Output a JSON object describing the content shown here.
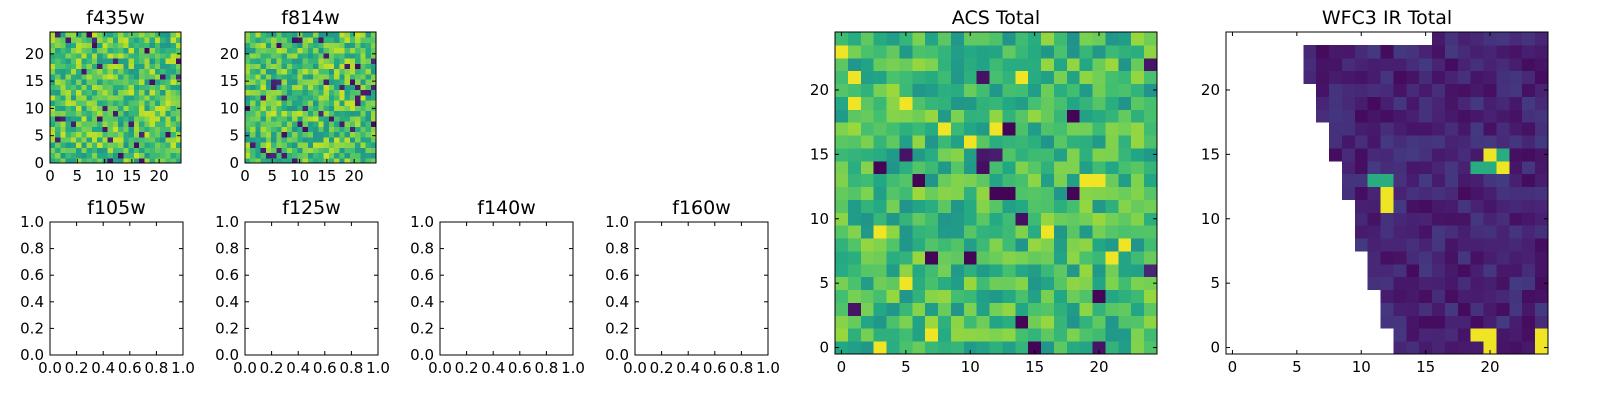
{
  "colormap": "viridis",
  "colors": {
    "frame": "#000000",
    "background": "#ffffff",
    "missing": "#ffffff"
  },
  "chart_data": [
    {
      "type": "heatmap",
      "title": "f435w",
      "grid_size": 25,
      "xlim": [
        0,
        24
      ],
      "ylim": [
        0,
        24
      ],
      "xticks": [
        0,
        5,
        10,
        15,
        20
      ],
      "yticks": [
        0,
        5,
        10,
        15,
        20
      ],
      "seed": 11,
      "value_mean": 0.72,
      "value_spread": 0.2,
      "low_outlier_rate": 0.04
    },
    {
      "type": "heatmap",
      "title": "f814w",
      "grid_size": 25,
      "xlim": [
        0,
        24
      ],
      "ylim": [
        0,
        24
      ],
      "xticks": [
        0,
        5,
        10,
        15,
        20
      ],
      "yticks": [
        0,
        5,
        10,
        15,
        20
      ],
      "seed": 23,
      "value_mean": 0.72,
      "value_spread": 0.2,
      "low_outlier_rate": 0.05
    },
    {
      "type": "empty",
      "title": "f105w",
      "xlim": [
        0,
        1
      ],
      "ylim": [
        0,
        1
      ],
      "xticks": [
        "0.0",
        "0.2",
        "0.4",
        "0.6",
        "0.8",
        "1.0"
      ],
      "yticks": [
        "0.0",
        "0.2",
        "0.4",
        "0.6",
        "0.8",
        "1.0"
      ]
    },
    {
      "type": "empty",
      "title": "f125w",
      "xlim": [
        0,
        1
      ],
      "ylim": [
        0,
        1
      ],
      "xticks": [
        "0.0",
        "0.2",
        "0.4",
        "0.6",
        "0.8",
        "1.0"
      ],
      "yticks": [
        "0.0",
        "0.2",
        "0.4",
        "0.6",
        "0.8",
        "1.0"
      ]
    },
    {
      "type": "empty",
      "title": "f140w",
      "xlim": [
        0,
        1
      ],
      "ylim": [
        0,
        1
      ],
      "xticks": [
        "0.0",
        "0.2",
        "0.4",
        "0.6",
        "0.8",
        "1.0"
      ],
      "yticks": [
        "0.0",
        "0.2",
        "0.4",
        "0.6",
        "0.8",
        "1.0"
      ]
    },
    {
      "type": "empty",
      "title": "f160w",
      "xlim": [
        0,
        1
      ],
      "ylim": [
        0,
        1
      ],
      "xticks": [
        "0.0",
        "0.2",
        "0.4",
        "0.6",
        "0.8",
        "1.0"
      ],
      "yticks": [
        "0.0",
        "0.2",
        "0.4",
        "0.6",
        "0.8",
        "1.0"
      ]
    },
    {
      "type": "heatmap",
      "title": "ACS Total",
      "grid_size": 25,
      "xlim": [
        -0.5,
        24.5
      ],
      "ylim": [
        -0.5,
        24.5
      ],
      "xticks": [
        0,
        5,
        10,
        15,
        20
      ],
      "yticks": [
        0,
        5,
        10,
        15,
        20
      ],
      "seed": 37,
      "value_mean": 0.68,
      "value_spread": 0.17,
      "low_outlier_rate": 0.02,
      "bright_cells": [
        [
          0,
          23
        ],
        [
          1,
          21
        ],
        [
          1,
          19
        ],
        [
          5,
          19
        ],
        [
          8,
          17
        ],
        [
          10,
          16
        ],
        [
          19,
          13
        ],
        [
          20,
          13
        ],
        [
          3,
          9
        ],
        [
          16,
          9
        ],
        [
          5,
          5
        ],
        [
          21,
          7
        ],
        [
          22,
          8
        ],
        [
          7,
          1
        ],
        [
          3,
          0
        ],
        [
          12,
          17
        ],
        [
          14,
          21
        ]
      ],
      "dark_cells": [
        [
          13,
          17
        ],
        [
          18,
          18
        ],
        [
          3,
          14
        ],
        [
          6,
          13
        ],
        [
          12,
          12
        ],
        [
          13,
          12
        ],
        [
          18,
          12
        ],
        [
          20,
          4
        ],
        [
          15,
          0
        ],
        [
          14,
          2
        ],
        [
          10,
          7
        ],
        [
          7,
          7
        ]
      ]
    },
    {
      "type": "heatmap",
      "title": "WFC3 IR Total",
      "grid_size": 25,
      "xlim": [
        -0.5,
        24.5
      ],
      "ylim": [
        -0.5,
        24.5
      ],
      "xticks": [
        0,
        5,
        10,
        15,
        20
      ],
      "yticks": [
        0,
        5,
        10,
        15,
        20
      ],
      "seed": 51,
      "value_mean": 0.1,
      "value_spread": 0.07,
      "low_outlier_rate": 0.05,
      "missing_region": "upper-left triangle",
      "coverage_left_edge": [
        [
          0,
          12.5
        ],
        [
          24,
          5
        ]
      ],
      "bright_cells": [
        [
          20,
          1
        ],
        [
          20,
          0
        ],
        [
          19,
          1
        ],
        [
          24,
          1
        ],
        [
          24,
          0
        ],
        [
          12,
          12
        ],
        [
          12,
          11
        ],
        [
          20,
          15
        ],
        [
          21,
          14
        ],
        [
          11,
          13
        ]
      ],
      "mid_cells": [
        [
          20,
          14
        ],
        [
          19,
          14
        ],
        [
          12,
          13
        ],
        [
          11,
          13
        ],
        [
          21,
          15
        ]
      ]
    }
  ]
}
